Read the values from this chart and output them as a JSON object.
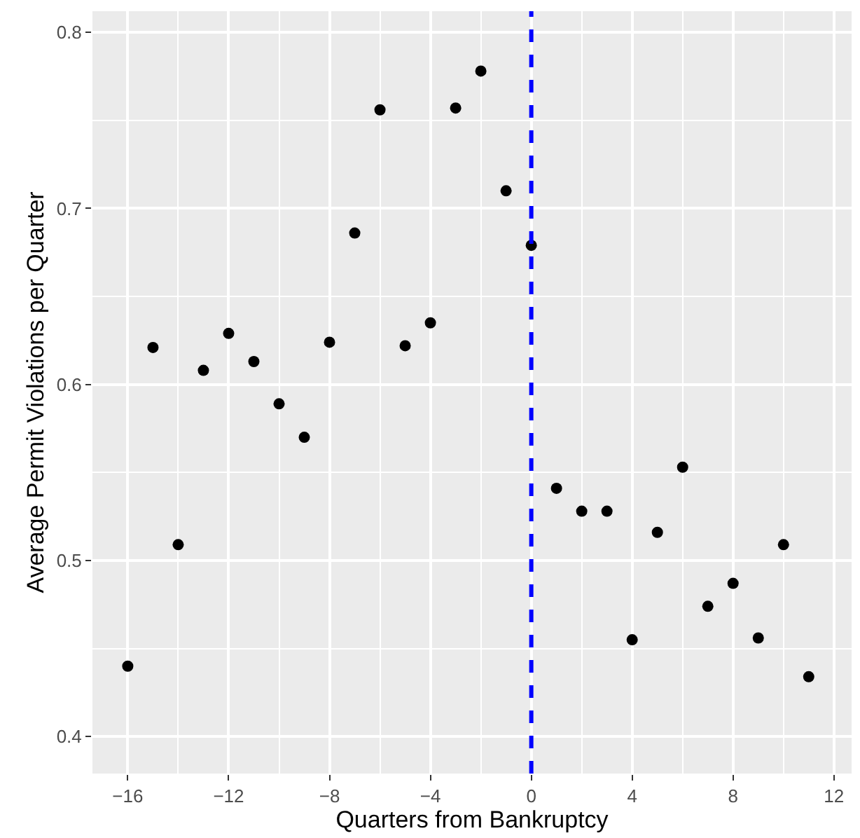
{
  "chart_data": {
    "type": "scatter",
    "xlabel": "Quarters from Bankruptcy",
    "ylabel": "Average Permit Violations per Quarter",
    "x": [
      -16,
      -15,
      -14,
      -13,
      -12,
      -11,
      -10,
      -9,
      -8,
      -7,
      -6,
      -5,
      -4,
      -3,
      -2,
      -1,
      0,
      1,
      2,
      3,
      4,
      5,
      6,
      7,
      8,
      9,
      10,
      11
    ],
    "series": [
      {
        "color": "#000000",
        "values": [
          0.44,
          0.621,
          0.509,
          0.608,
          0.629,
          0.613,
          0.589,
          0.57,
          0.624,
          0.686,
          0.756,
          0.622,
          0.635,
          0.757,
          0.778,
          0.71,
          0.679,
          0.541,
          0.528,
          0.528,
          0.455,
          0.516,
          0.553,
          0.474,
          0.487,
          0.456,
          0.509,
          0.434
        ]
      }
    ],
    "xlim": [
      -17.4,
      12.7
    ],
    "ylim": [
      0.379,
      0.812
    ],
    "xticks": [
      {
        "value": -16,
        "label": "−16"
      },
      {
        "value": -12,
        "label": "−12"
      },
      {
        "value": -8,
        "label": "−8"
      },
      {
        "value": -4,
        "label": "−4"
      },
      0,
      4,
      8,
      12
    ],
    "yticks": [
      0.4,
      0.5,
      0.6,
      0.7,
      0.8
    ],
    "ref_lines": [
      {
        "axis": "x",
        "value": 0,
        "color": "#0000ff",
        "line_style": "dashed"
      }
    ],
    "grid": true,
    "marker": "circle"
  }
}
